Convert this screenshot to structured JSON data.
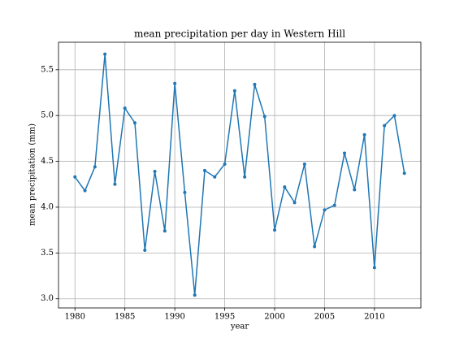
{
  "chart_data": {
    "type": "line",
    "title": "mean precipitation per day in Western Hill",
    "xlabel": "year",
    "ylabel": "mean precipitation (mm)",
    "x": [
      1980,
      1981,
      1982,
      1983,
      1984,
      1985,
      1986,
      1987,
      1988,
      1989,
      1990,
      1991,
      1992,
      1993,
      1994,
      1995,
      1996,
      1997,
      1998,
      1999,
      2000,
      2001,
      2002,
      2003,
      2004,
      2005,
      2006,
      2007,
      2008,
      2009,
      2010,
      2011,
      2012,
      2013
    ],
    "series": [
      {
        "name": "mean precipitation",
        "color": "#1f77b4",
        "values": [
          4.33,
          4.18,
          4.44,
          5.67,
          4.25,
          5.08,
          4.92,
          3.53,
          4.39,
          3.74,
          5.35,
          4.16,
          3.04,
          4.4,
          4.33,
          4.47,
          5.27,
          4.33,
          5.34,
          4.99,
          3.75,
          4.22,
          4.05,
          4.47,
          3.57,
          3.97,
          4.02,
          4.59,
          4.19,
          4.79,
          3.34,
          4.89,
          5.0,
          4.37
        ]
      }
    ],
    "xlim": [
      1978.35,
      2014.65
    ],
    "ylim": [
      2.9,
      5.8
    ],
    "xticks": [
      1980,
      1985,
      1990,
      1995,
      2000,
      2005,
      2010
    ],
    "yticks": [
      {
        "value": 3.0,
        "label": "3.0"
      },
      3.5,
      {
        "value": 4.0,
        "label": "4.0"
      },
      4.5,
      {
        "value": 5.0,
        "label": "5.0"
      },
      5.5
    ],
    "grid": true
  }
}
